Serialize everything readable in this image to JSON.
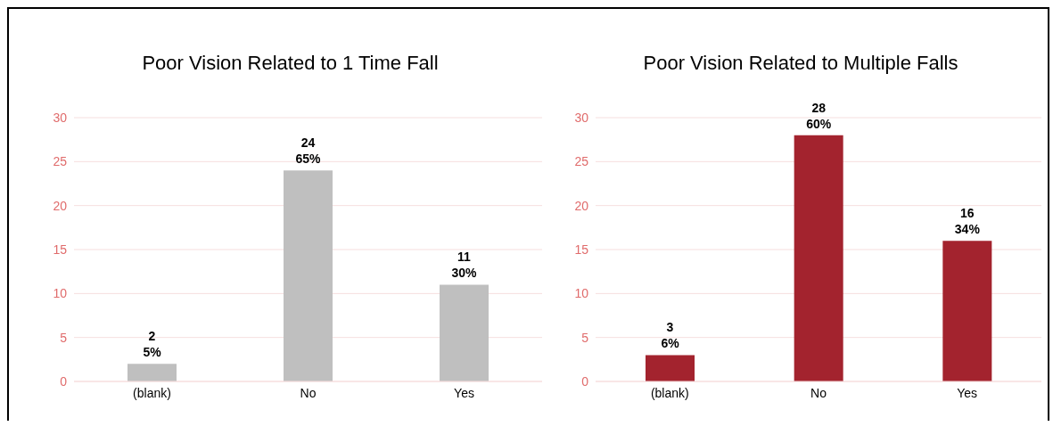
{
  "chart_data": [
    {
      "type": "bar",
      "title": "Poor Vision Related to 1 Time Fall",
      "categories": [
        "(blank)",
        "No",
        "Yes"
      ],
      "values": [
        2,
        24,
        11
      ],
      "color": "#bfbfbf",
      "value_labels": [
        "2\n5%",
        "24\n65%",
        "11\n30%"
      ],
      "ylim": [
        0,
        30
      ],
      "yticks": [
        0,
        5,
        10,
        15,
        20,
        25,
        30
      ],
      "grid": "y",
      "legend": false
    },
    {
      "type": "bar",
      "title": "Poor Vision Related to Multiple Falls",
      "categories": [
        "(blank)",
        "No",
        "Yes"
      ],
      "values": [
        3,
        28,
        16
      ],
      "color": "#a3232e",
      "value_labels": [
        "3\n6%",
        "28\n60%",
        "16\n34%"
      ],
      "ylim": [
        0,
        30
      ],
      "yticks": [
        0,
        5,
        10,
        15,
        20,
        25,
        30
      ],
      "grid": "y",
      "legend": false
    }
  ]
}
